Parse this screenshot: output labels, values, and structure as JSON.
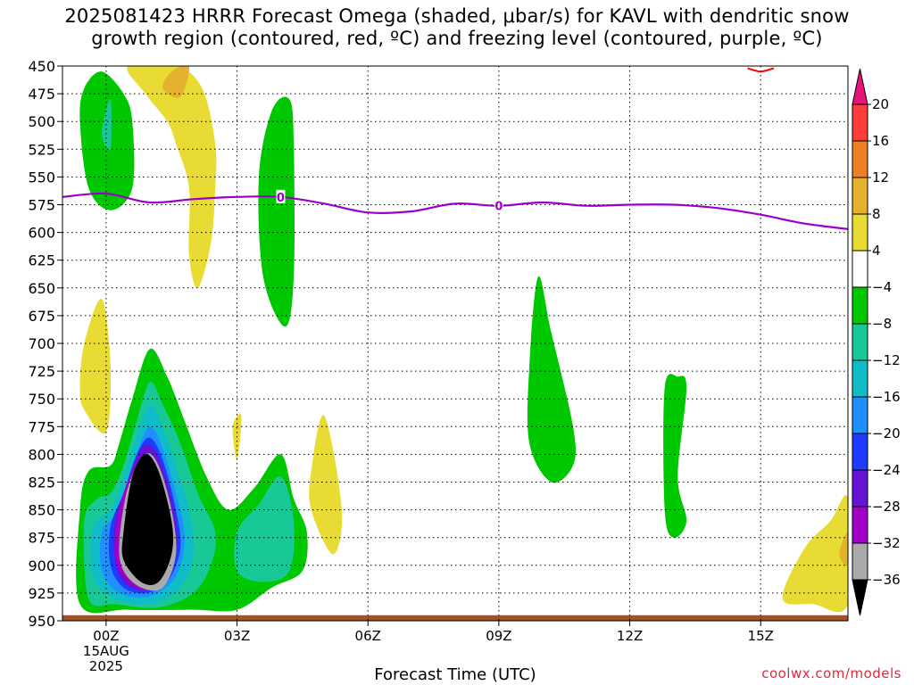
{
  "title": {
    "line1": "2025081423 HRRR Forecast Omega (shaded, μbar/s) for KAVL with dendritic snow",
    "line2": "growth region (contoured, red, ºC) and freezing level (contoured, purple, ºC)"
  },
  "credit": "coolwx.com/models",
  "chart_data": {
    "type": "heatmap",
    "xlabel": "Forecast Time (UTC)",
    "ylabel": "",
    "x_range_hours": [
      -1,
      17
    ],
    "y_range_hpa": [
      950,
      450
    ],
    "x_ticks": [
      {
        "hour": 0,
        "label": "00Z",
        "sub1": "15AUG",
        "sub2": "2025"
      },
      {
        "hour": 3,
        "label": "03Z",
        "sub1": "",
        "sub2": ""
      },
      {
        "hour": 6,
        "label": "06Z",
        "sub1": "",
        "sub2": ""
      },
      {
        "hour": 9,
        "label": "09Z",
        "sub1": "",
        "sub2": ""
      },
      {
        "hour": 12,
        "label": "12Z",
        "sub1": "",
        "sub2": ""
      },
      {
        "hour": 15,
        "label": "15Z",
        "sub1": "",
        "sub2": ""
      }
    ],
    "y_ticks": [
      "450",
      "475",
      "500",
      "525",
      "550",
      "575",
      "600",
      "625",
      "650",
      "675",
      "700",
      "725",
      "750",
      "775",
      "800",
      "825",
      "850",
      "875",
      "900",
      "925",
      "950"
    ],
    "y_values": [
      450,
      475,
      500,
      525,
      550,
      575,
      600,
      625,
      650,
      675,
      700,
      725,
      750,
      775,
      800,
      825,
      850,
      875,
      900,
      925,
      950
    ],
    "grid": true,
    "colorbar": {
      "labels": [
        "20",
        "16",
        "12",
        "8",
        "4",
        "−4",
        "−8",
        "−12",
        "−16",
        "−20",
        "−24",
        "−28",
        "−32",
        "−36"
      ],
      "values": [
        20,
        16,
        12,
        8,
        4,
        -4,
        -8,
        -12,
        -16,
        -20,
        -24,
        -28,
        -32,
        -36
      ],
      "colors": [
        "#e8147c",
        "#ff3c3c",
        "#ee8022",
        "#e4b22c",
        "#e8dc34",
        "#ffffff",
        "#00c800",
        "#18c896",
        "#10bcc8",
        "#1e90ff",
        "#1e3cff",
        "#6414d2",
        "#a000c8",
        "#aaaaaa",
        "#000000"
      ]
    },
    "freezing_level": {
      "color": "#9900cc",
      "label": "0",
      "points": [
        [
          -1,
          568
        ],
        [
          0,
          565
        ],
        [
          1,
          573
        ],
        [
          2,
          570
        ],
        [
          3,
          568
        ],
        [
          4,
          568
        ],
        [
          5,
          574
        ],
        [
          6,
          582
        ],
        [
          7,
          581
        ],
        [
          8,
          574
        ],
        [
          9,
          576
        ],
        [
          10,
          573
        ],
        [
          11,
          576
        ],
        [
          12,
          575
        ],
        [
          13,
          575
        ],
        [
          14,
          578
        ],
        [
          15,
          584
        ],
        [
          16,
          592
        ],
        [
          17,
          597
        ]
      ],
      "label_hours": [
        4,
        9
      ]
    },
    "omega_regions": [
      {
        "level": "-36",
        "color": "#000000",
        "points": [
          [
            0.4,
            870
          ],
          [
            0.6,
            820
          ],
          [
            0.9,
            800
          ],
          [
            1.2,
            815
          ],
          [
            1.5,
            860
          ],
          [
            1.5,
            890
          ],
          [
            1.2,
            915
          ],
          [
            0.8,
            915
          ],
          [
            0.4,
            895
          ]
        ]
      },
      {
        "level": "4",
        "color": "#e8dc34",
        "points": [
          [
            0.5,
            450
          ],
          [
            1.6,
            450
          ],
          [
            2.2,
            470
          ],
          [
            2.5,
            520
          ],
          [
            2.5,
            560
          ],
          [
            2.4,
            610
          ],
          [
            2.1,
            650
          ],
          [
            1.9,
            620
          ],
          [
            1.9,
            560
          ],
          [
            1.6,
            520
          ],
          [
            1.4,
            500
          ],
          [
            0.9,
            475
          ]
        ]
      },
      {
        "level": "8",
        "color": "#e4b22c",
        "points": [
          [
            1.5,
            455
          ],
          [
            1.9,
            450
          ],
          [
            1.7,
            478
          ],
          [
            1.3,
            470
          ]
        ]
      },
      {
        "level": "-4",
        "color": "#00c800",
        "points": [
          [
            -0.6,
            500
          ],
          [
            -0.5,
            470
          ],
          [
            -0.1,
            455
          ],
          [
            0.4,
            475
          ],
          [
            0.6,
            500
          ],
          [
            0.6,
            560
          ],
          [
            0.1,
            580
          ],
          [
            -0.4,
            560
          ]
        ]
      },
      {
        "level": "-8",
        "color": "#18c896",
        "points": [
          [
            -0.1,
            510
          ],
          [
            0.1,
            480
          ],
          [
            0.1,
            525
          ]
        ]
      },
      {
        "level": "-4",
        "color": "#00c800",
        "points": [
          [
            3.5,
            550
          ],
          [
            3.8,
            490
          ],
          [
            4.2,
            480
          ],
          [
            4.3,
            520
          ],
          [
            4.3,
            640
          ],
          [
            4.1,
            685
          ],
          [
            3.6,
            640
          ]
        ]
      },
      {
        "level": "4",
        "color": "#e8dc34",
        "points": [
          [
            -0.6,
            740
          ],
          [
            -0.5,
            700
          ],
          [
            -0.1,
            660
          ],
          [
            0.1,
            720
          ],
          [
            0.0,
            780
          ],
          [
            -0.5,
            760
          ]
        ]
      },
      {
        "level": "4",
        "color": "#e8dc34",
        "points": [
          [
            2.9,
            775
          ],
          [
            3.1,
            765
          ],
          [
            3.0,
            805
          ]
        ]
      },
      {
        "level": "4",
        "color": "#e8dc34",
        "points": [
          [
            4.7,
            815
          ],
          [
            5.0,
            765
          ],
          [
            5.4,
            850
          ],
          [
            5.2,
            890
          ],
          [
            4.7,
            850
          ]
        ]
      },
      {
        "level": "-4",
        "color": "#00c800",
        "points": [
          [
            9.7,
            720
          ],
          [
            9.9,
            640
          ],
          [
            10.2,
            690
          ],
          [
            10.7,
            775
          ],
          [
            10.7,
            810
          ],
          [
            10.2,
            825
          ],
          [
            9.7,
            790
          ]
        ]
      },
      {
        "level": "-4",
        "color": "#00c800",
        "points": [
          [
            12.8,
            740
          ],
          [
            13.1,
            730
          ],
          [
            13.3,
            740
          ],
          [
            13.1,
            820
          ],
          [
            13.3,
            860
          ],
          [
            13.0,
            875
          ],
          [
            12.8,
            850
          ]
        ]
      },
      {
        "level": "4",
        "color": "#e8dc34",
        "points": [
          [
            15.5,
            930
          ],
          [
            16.0,
            885
          ],
          [
            16.6,
            860
          ],
          [
            17.0,
            840
          ],
          [
            17.0,
            935
          ],
          [
            16.2,
            935
          ]
        ]
      },
      {
        "level": "8",
        "color": "#e4b22c",
        "points": [
          [
            16.8,
            890
          ],
          [
            17.0,
            870
          ],
          [
            17.0,
            900
          ]
        ]
      }
    ],
    "main_system": [
      {
        "level": "-4",
        "color": "#00c800",
        "points": [
          [
            -0.6,
            935
          ],
          [
            -0.6,
            850
          ],
          [
            -0.4,
            815
          ],
          [
            0.1,
            810
          ],
          [
            0.3,
            790
          ],
          [
            0.6,
            750
          ],
          [
            1.0,
            705
          ],
          [
            1.4,
            730
          ],
          [
            1.8,
            770
          ],
          [
            2.3,
            820
          ],
          [
            2.8,
            850
          ],
          [
            3.4,
            830
          ],
          [
            4.0,
            800
          ],
          [
            4.3,
            840
          ],
          [
            4.6,
            870
          ],
          [
            4.5,
            905
          ],
          [
            3.8,
            920
          ],
          [
            3.0,
            940
          ],
          [
            2.0,
            940
          ],
          [
            0.5,
            940
          ]
        ]
      },
      {
        "level": "-8",
        "color": "#18c896",
        "points": [
          [
            -0.4,
            930
          ],
          [
            -0.5,
            860
          ],
          [
            -0.2,
            840
          ],
          [
            0.1,
            835
          ],
          [
            0.4,
            810
          ],
          [
            0.7,
            770
          ],
          [
            1.0,
            735
          ],
          [
            1.3,
            755
          ],
          [
            1.7,
            790
          ],
          [
            2.1,
            835
          ],
          [
            2.5,
            870
          ],
          [
            2.4,
            900
          ],
          [
            2.0,
            925
          ],
          [
            1.2,
            938
          ],
          [
            0.2,
            935
          ]
        ]
      },
      {
        "level": "-8",
        "color": "#18c896",
        "points": [
          [
            3.0,
            870
          ],
          [
            3.5,
            845
          ],
          [
            4.0,
            820
          ],
          [
            4.3,
            860
          ],
          [
            4.2,
            905
          ],
          [
            3.6,
            915
          ],
          [
            3.0,
            905
          ]
        ]
      },
      {
        "level": "-12",
        "color": "#10bcc8",
        "points": [
          [
            -0.3,
            910
          ],
          [
            -0.3,
            865
          ],
          [
            0.1,
            850
          ],
          [
            0.4,
            820
          ],
          [
            0.7,
            785
          ],
          [
            1.0,
            755
          ],
          [
            1.3,
            775
          ],
          [
            1.6,
            810
          ],
          [
            1.9,
            850
          ],
          [
            2.0,
            890
          ],
          [
            1.7,
            920
          ],
          [
            1.0,
            935
          ],
          [
            0.2,
            930
          ]
        ]
      },
      {
        "level": "-16",
        "color": "#1e90ff",
        "points": [
          [
            -0.1,
            905
          ],
          [
            -0.1,
            870
          ],
          [
            0.2,
            855
          ],
          [
            0.5,
            825
          ],
          [
            0.7,
            800
          ],
          [
            1.0,
            775
          ],
          [
            1.3,
            795
          ],
          [
            1.6,
            835
          ],
          [
            1.8,
            875
          ],
          [
            1.6,
            910
          ],
          [
            1.0,
            928
          ],
          [
            0.3,
            925
          ]
        ]
      },
      {
        "level": "-20",
        "color": "#1e3cff",
        "points": [
          [
            0.1,
            900
          ],
          [
            0.1,
            865
          ],
          [
            0.4,
            835
          ],
          [
            0.7,
            800
          ],
          [
            1.0,
            785
          ],
          [
            1.3,
            805
          ],
          [
            1.6,
            850
          ],
          [
            1.7,
            885
          ],
          [
            1.4,
            915
          ],
          [
            0.9,
            925
          ],
          [
            0.4,
            920
          ]
        ]
      },
      {
        "level": "-24",
        "color": "#6414d2",
        "points": [
          [
            0.2,
            895
          ],
          [
            0.2,
            860
          ],
          [
            0.5,
            825
          ],
          [
            0.8,
            795
          ],
          [
            1.1,
            795
          ],
          [
            1.4,
            825
          ],
          [
            1.6,
            860
          ],
          [
            1.6,
            890
          ],
          [
            1.3,
            915
          ],
          [
            0.8,
            922
          ],
          [
            0.4,
            915
          ]
        ]
      },
      {
        "level": "-28",
        "color": "#a000c8",
        "points": [
          [
            0.2,
            890
          ],
          [
            0.3,
            850
          ],
          [
            0.6,
            815
          ],
          [
            0.9,
            800
          ],
          [
            1.2,
            810
          ],
          [
            1.5,
            850
          ],
          [
            1.6,
            890
          ],
          [
            1.3,
            918
          ],
          [
            0.8,
            922
          ],
          [
            0.4,
            910
          ]
        ]
      },
      {
        "level": "-32",
        "color": "#aaaaaa",
        "points": [
          [
            0.3,
            880
          ],
          [
            0.5,
            830
          ],
          [
            0.9,
            800
          ],
          [
            1.2,
            810
          ],
          [
            1.5,
            850
          ],
          [
            1.6,
            890
          ],
          [
            1.3,
            920
          ],
          [
            0.8,
            920
          ],
          [
            0.4,
            905
          ]
        ]
      }
    ],
    "surface_band": {
      "color": "#a0522d",
      "top_hpa": 945,
      "bottom_hpa": 950
    },
    "dendritic_contour": {
      "color": "#ff0000",
      "points": [
        [
          14.7,
          452
        ],
        [
          15.0,
          455
        ],
        [
          15.3,
          452
        ]
      ]
    }
  }
}
